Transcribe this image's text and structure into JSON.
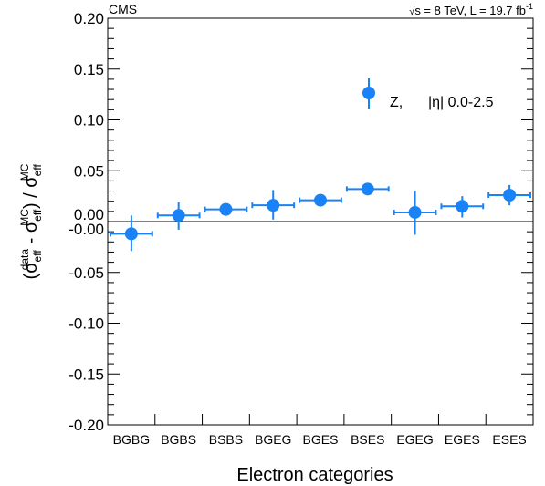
{
  "chart_data": {
    "type": "scatter",
    "experiment_label": "CMS",
    "energy_label": {
      "sqrt_s": "s",
      "rest": " = 8 TeV, L = 19.7 fb",
      "exponent": "-1"
    },
    "xlabel": "Electron categories",
    "ylabel": {
      "open": "(σ",
      "sub1": "eff",
      "sup1": "data",
      "minus": " - σ",
      "sub2": "eff",
      "sup2": "MC",
      "mid": ") / σ",
      "sub3": "eff",
      "sup3": "MC"
    },
    "categories": [
      "BGBG",
      "BGBS",
      "BSBS",
      "BGEG",
      "BGES",
      "BSES",
      "EGEG",
      "EGES",
      "ESES"
    ],
    "ylim": [
      -0.2,
      0.2
    ],
    "yticks": [
      "0.20",
      "0.15",
      "0.10",
      "0.05",
      "0.00",
      "-0.00",
      "-0.05",
      "-0.10",
      "-0.15",
      "-0.20"
    ],
    "ytick_values": [
      0.2,
      0.15,
      0.1,
      0.05,
      0.0,
      -0.0,
      -0.05,
      -0.1,
      -0.15,
      -0.2
    ],
    "reference_line": 0,
    "marker_color": "#1a82f7",
    "legend": {
      "position": "top-right",
      "label": "Z,",
      "eta_label": "|η| 0.0-2.5"
    },
    "series": [
      {
        "name": "Z,",
        "values": [
          -0.012,
          0.006,
          0.012,
          0.016,
          0.021,
          0.032,
          0.009,
          0.015,
          0.026
        ],
        "yerr_low": [
          0.017,
          0.014,
          0.004,
          0.014,
          0.004,
          0.003,
          0.022,
          0.011,
          0.01
        ],
        "yerr_high": [
          0.018,
          0.013,
          0.004,
          0.015,
          0.004,
          0.003,
          0.021,
          0.01,
          0.01
        ]
      }
    ]
  }
}
